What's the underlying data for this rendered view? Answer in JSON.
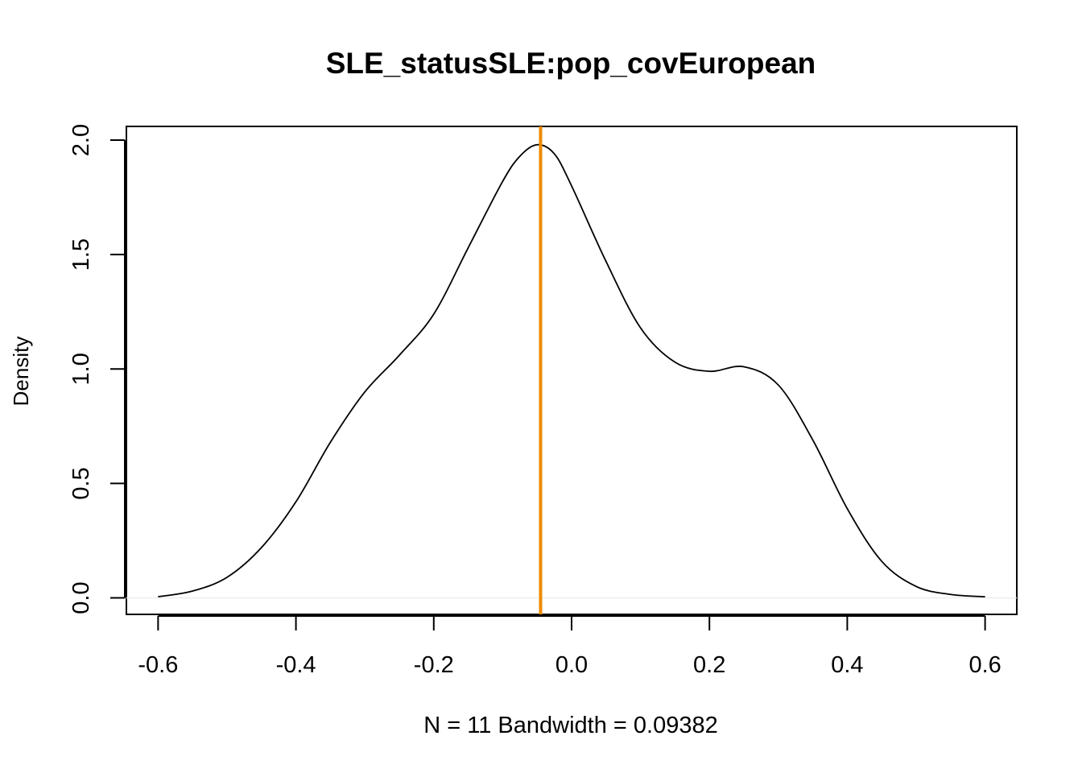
{
  "chart_data": {
    "type": "line",
    "title": "SLE_statusSLE:pop_covEuropean",
    "xlabel": "N = 11   Bandwidth = 0.09382",
    "ylabel": "Density",
    "xlim": [
      -0.646,
      0.646
    ],
    "ylim": [
      -0.072,
      2.06
    ],
    "x_ticks": [
      -0.6,
      -0.4,
      -0.2,
      0.0,
      0.2,
      0.4,
      0.6
    ],
    "x_tick_labels": [
      "-0.6",
      "-0.4",
      "-0.2",
      "0.0",
      "0.2",
      "0.4",
      "0.6"
    ],
    "y_ticks": [
      0.0,
      0.5,
      1.0,
      1.5,
      2.0
    ],
    "y_tick_labels": [
      "0.0",
      "0.5",
      "1.0",
      "1.5",
      "2.0"
    ],
    "grid": false,
    "legend": "none",
    "baseline": 0.0,
    "series": [
      {
        "x": [
          -0.6,
          -0.55,
          -0.5,
          -0.45,
          -0.4,
          -0.35,
          -0.3,
          -0.25,
          -0.2,
          -0.15,
          -0.1,
          -0.075,
          -0.05,
          -0.025,
          0.0,
          0.05,
          0.1,
          0.15,
          0.2,
          0.25,
          0.3,
          0.35,
          0.4,
          0.45,
          0.5,
          0.55,
          0.6
        ],
        "values": [
          0.005,
          0.03,
          0.09,
          0.22,
          0.42,
          0.68,
          0.9,
          1.06,
          1.24,
          1.53,
          1.82,
          1.93,
          1.98,
          1.94,
          1.8,
          1.47,
          1.18,
          1.03,
          0.99,
          1.01,
          0.93,
          0.69,
          0.39,
          0.16,
          0.05,
          0.015,
          0.005
        ],
        "color": "#000000"
      }
    ],
    "vline": {
      "x": -0.045,
      "color": "#EE8A00"
    }
  },
  "colors": {
    "curve": "#000000",
    "vline": "#EE8A00",
    "baseline": "#EEEEEE",
    "frame": "#000000"
  }
}
